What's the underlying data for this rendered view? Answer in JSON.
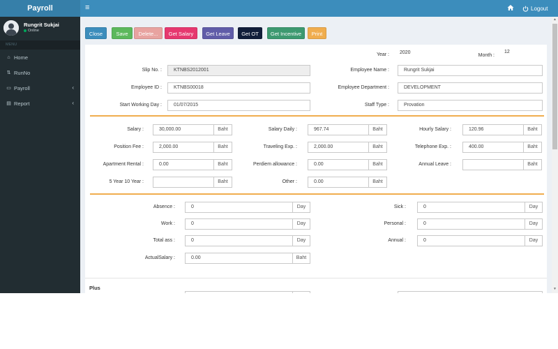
{
  "header": {
    "brand": "Payroll",
    "hamburger_glyph": "≡",
    "home_icon": "home-icon",
    "logout_label": "Logout",
    "colors": {
      "brand_bg": "#367fa9",
      "bar_bg": "#3c8dbc"
    }
  },
  "sidebar": {
    "user_name": "Rungrit Sukjai",
    "user_status": "Online",
    "menu_header": "MENU",
    "items": [
      {
        "label": "Home",
        "icon": "home-icon",
        "glyph": "⌂"
      },
      {
        "label": "RunNo",
        "icon": "sort-icon",
        "glyph": "⇅"
      },
      {
        "label": "Payroll",
        "icon": "money-icon",
        "glyph": "▭",
        "chevron": "‹"
      },
      {
        "label": "Report",
        "icon": "file-icon",
        "glyph": "▤",
        "chevron": "‹"
      }
    ]
  },
  "toolbar": {
    "buttons": [
      {
        "name": "close-button",
        "label": "Close",
        "color": "#3c8dbc"
      },
      {
        "name": "save-button",
        "label": "Save",
        "color": "#5cb85c"
      },
      {
        "name": "delete-button",
        "label": "Delete...",
        "color": "#e8a3a0"
      },
      {
        "name": "get-salary-button",
        "label": "Get Salary",
        "color": "#e6386f"
      },
      {
        "name": "get-leave-button",
        "label": "Get Leave",
        "color": "#605ca8"
      },
      {
        "name": "get-ot-button",
        "label": "Get OT",
        "color": "#111e3a"
      },
      {
        "name": "get-incentive-button",
        "label": "Get Incentive",
        "color": "#3d9970"
      },
      {
        "name": "print-button",
        "label": "Print",
        "color": "#f0ad4e"
      }
    ]
  },
  "form": {
    "year_label": "Year :",
    "year_value": "2020",
    "month_label": "Month :",
    "month_value": "12",
    "slip_no_label": "Slip No. :",
    "slip_no_value": "KTNBS2012001",
    "employee_name_label": "Employee Name :",
    "employee_name_value": "Rungrit Sukjai",
    "employee_id_label": "Employee ID :",
    "employee_id_value": "KTNBS00018",
    "employee_dept_label": "Employee Department :",
    "employee_dept_value": "DEVELOPMENT",
    "start_day_label": "Start Working Day :",
    "start_day_value": "01/07/2015",
    "staff_type_label": "Staff Type :",
    "staff_type_value": "Provation",
    "currency_unit": "Baht",
    "day_unit": "Day",
    "salary_label": "Salary :",
    "salary_value": "30,000.00",
    "salary_daily_label": "Salary Daily :",
    "salary_daily_value": "967.74",
    "hourly_salary_label": "Hourly Salary :",
    "hourly_salary_value": "120.96",
    "position_fee_label": "Position Fee :",
    "position_fee_value": "2,000.00",
    "traveling_label": "Traveling Exp. :",
    "traveling_value": "2,000.00",
    "telephone_label": "Telephone Exp. :",
    "telephone_value": "400.00",
    "apartment_label": "Apartment Rental :",
    "apartment_value": "0.00",
    "perdiem_label": "Perdiem allowance :",
    "perdiem_value": "0.00",
    "annual_leave_label": "Annual Leave :",
    "annual_leave_value": "",
    "five_year_label": "5 Year 10 Year :",
    "five_year_value": "",
    "other_label": "Other :",
    "other_value": "0.00",
    "absence_label": "Absence :",
    "absence_value": "0",
    "sick_label": "Sick :",
    "sick_value": "0",
    "work_label": "Work :",
    "work_value": "0",
    "personal_label": "Personal :",
    "personal_value": "0",
    "total_ass_label": "Total ass :",
    "total_ass_value": "0",
    "annual_label": "Annual :",
    "annual_value": "0",
    "actual_salary_label": "ActualSalary :",
    "actual_salary_value": "0.00",
    "plus_label": "Plus"
  }
}
